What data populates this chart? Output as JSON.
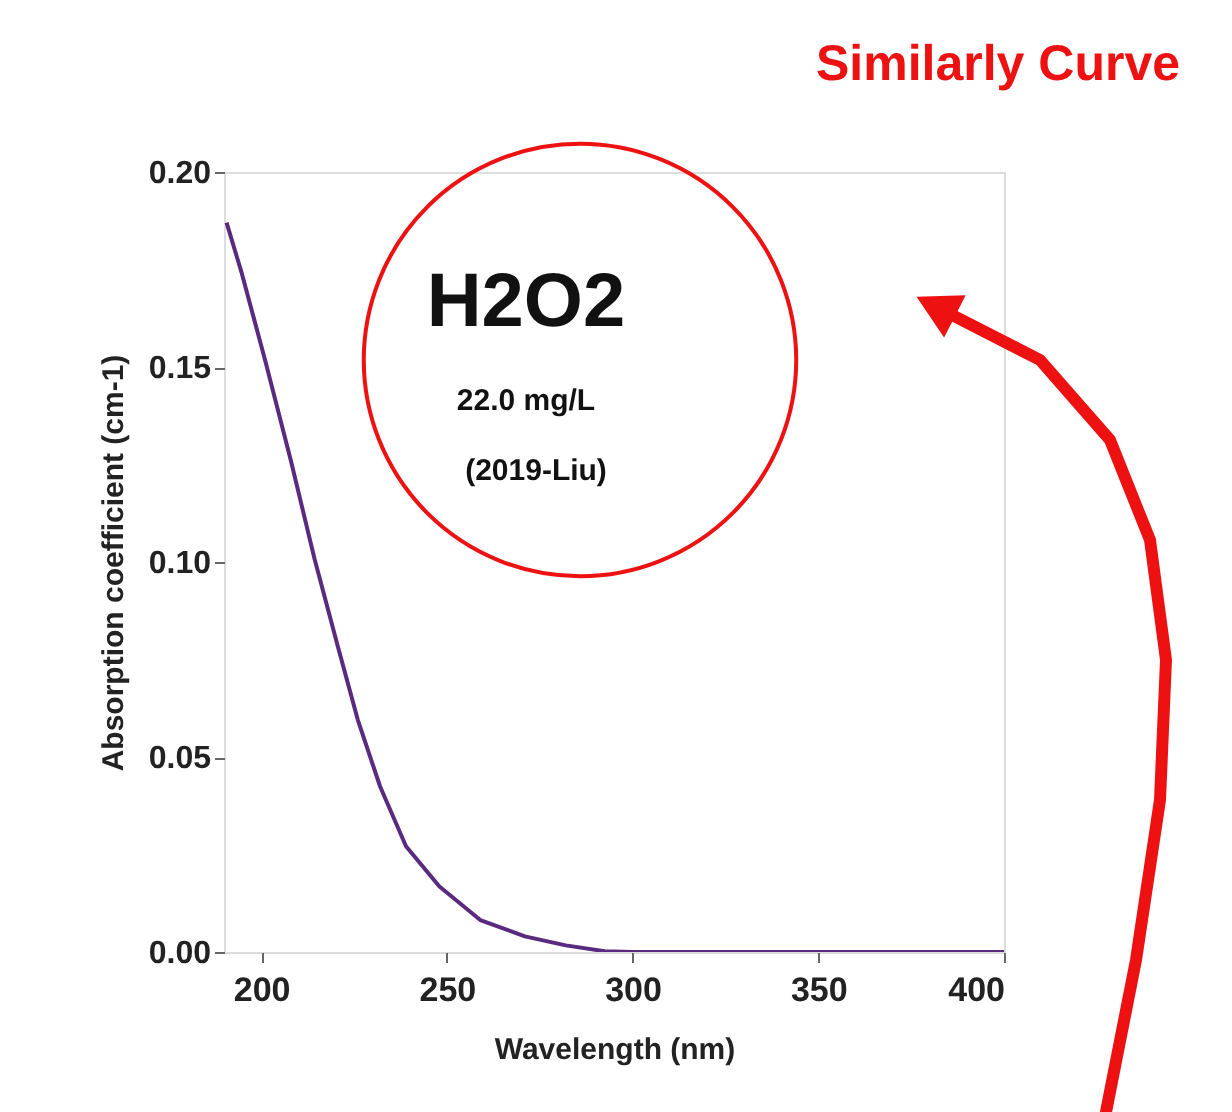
{
  "chart_data": {
    "type": "line",
    "title": "Similarly Curve",
    "xlabel": "Wavelength (nm)",
    "ylabel": "Absorption coefficient (cm-1)",
    "annotations": [
      "H2O2",
      "22.0 mg/L",
      "(2019-Liu)"
    ],
    "x": [
      190.7,
      194.8,
      201,
      208,
      214.4,
      220.6,
      226,
      232,
      239,
      248,
      259,
      271,
      282,
      292.5,
      300,
      350,
      400
    ],
    "series": [
      {
        "color": "#5a2a80",
        "values": [
          0.187,
          0.174,
          0.152,
          0.126,
          0.1007,
          0.0785,
          0.0596,
          0.0425,
          0.0271,
          0.0168,
          0.0082,
          0.004,
          0.0017,
          0.0002,
          0,
          0,
          0
        ]
      }
    ],
    "xlim": [
      190,
      400
    ],
    "ylim": [
      0,
      0.2
    ],
    "xticks": [
      200,
      250,
      300,
      350,
      400
    ],
    "yticks": [
      {
        "value": 0,
        "label": "0.00"
      },
      {
        "value": 0.05,
        "label": "0.05"
      },
      {
        "value": 0.1,
        "label": "0.10"
      },
      {
        "value": 0.15,
        "label": "0.15"
      },
      {
        "value": 0.2,
        "label": "0.20"
      }
    ],
    "marker": "none",
    "line_style": "solid",
    "grid": false
  }
}
